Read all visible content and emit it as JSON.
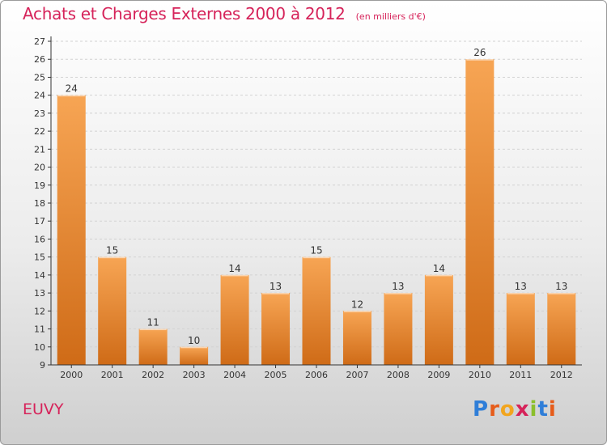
{
  "title": "Achats et Charges Externes 2000 à 2012",
  "unit": "(en milliers d'€)",
  "commune": "EUVY",
  "logo": {
    "letters": [
      "P",
      "r",
      "o",
      "x",
      "i",
      "t",
      "i"
    ],
    "colors": [
      "#2f7ed8",
      "#e65c1a",
      "#f2a51e",
      "#d6235a",
      "#8bbf2c",
      "#2f7ed8",
      "#e65c1a"
    ]
  },
  "colors": {
    "bar": "#f29a3c",
    "bar_dark": "#cf6b17",
    "title": "#d6235a",
    "axis": "#333333",
    "grid": "#c8c8c8"
  },
  "chart_data": {
    "type": "bar",
    "categories": [
      "2000",
      "2001",
      "2002",
      "2003",
      "2004",
      "2005",
      "2006",
      "2007",
      "2008",
      "2009",
      "2010",
      "2011",
      "2012"
    ],
    "values": [
      24,
      15,
      11,
      10,
      14,
      13,
      15,
      12,
      13,
      14,
      26,
      13,
      13
    ],
    "data_labels": [
      "24",
      "15",
      "11",
      "10",
      "14",
      "13",
      "15",
      "12",
      "13",
      "14",
      "26",
      "13",
      "13"
    ],
    "ylim": [
      9,
      27
    ],
    "yticks": [
      "9",
      "10",
      "11",
      "12",
      "13",
      "14",
      "15",
      "16",
      "17",
      "18",
      "19",
      "20",
      "21",
      "22",
      "23",
      "24",
      "25",
      "26",
      "27"
    ],
    "grid": true
  }
}
